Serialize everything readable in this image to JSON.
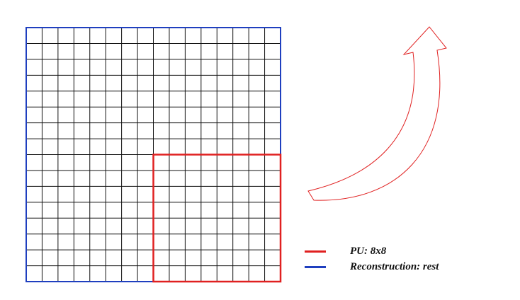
{
  "grid": {
    "rows": 16,
    "cols": 16,
    "line_color": "#111111",
    "outline_color": "#1f3fbf",
    "pu_block": {
      "row_start": 8,
      "col_start": 8,
      "rows": 8,
      "cols": 8,
      "color": "#e02020"
    }
  },
  "arrow": {
    "color": "#e02020",
    "direction": "up"
  },
  "legend": {
    "items": [
      {
        "label": "PU: 8x8",
        "color": "#e02020"
      },
      {
        "label": "Reconstruction: rest",
        "color": "#1f3fbf"
      }
    ]
  }
}
